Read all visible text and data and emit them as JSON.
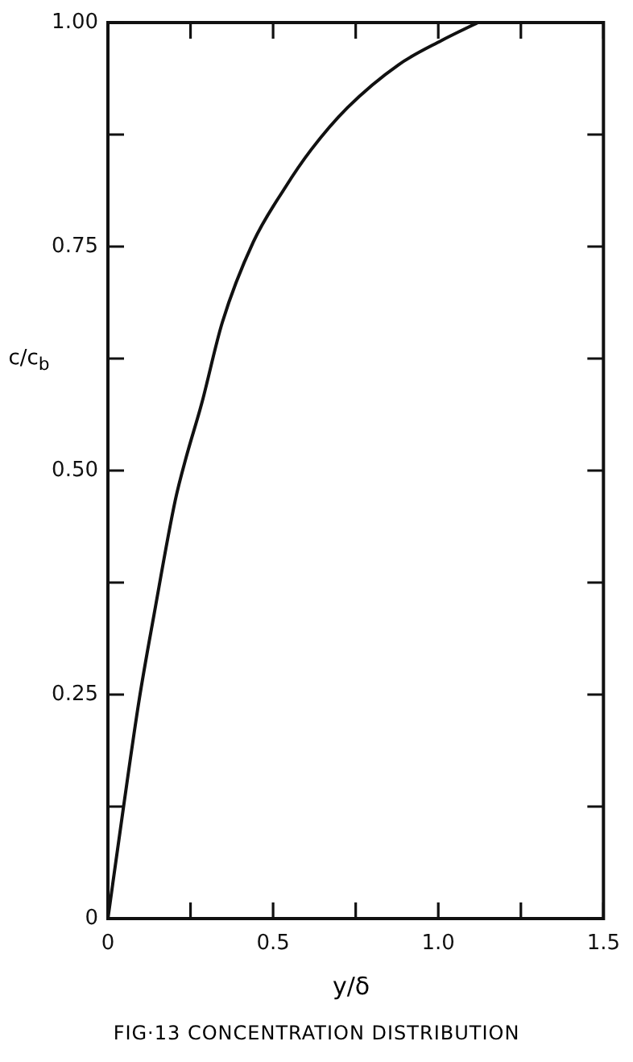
{
  "chart_data": {
    "type": "line",
    "title": "FIG·13 CONCENTRATION DISTRIBUTION",
    "xlabel": "y/δ",
    "ylabel": "c/c$_{b}$",
    "series": [
      {
        "color": "#111111",
        "x": [
          0,
          0.047,
          0.095,
          0.14,
          0.204,
          0.237,
          0.284,
          0.346,
          0.44,
          0.535,
          0.615,
          0.725,
          0.88,
          1.01,
          1.12
        ],
        "values": [
          0,
          0.124,
          0.245,
          0.34,
          0.467,
          0.515,
          0.575,
          0.665,
          0.755,
          0.815,
          0.858,
          0.905,
          0.953,
          0.98,
          1.0
        ]
      }
    ],
    "xlim": [
      0,
      1.5
    ],
    "ylim": [
      0,
      1.0
    ],
    "xticks": [
      0,
      {
        "value": 0.25,
        "label": null
      },
      0.5,
      {
        "value": 0.75,
        "label": null
      },
      {
        "value": 1.0,
        "label": "1.0"
      },
      {
        "value": 1.25,
        "label": null
      },
      1.5
    ],
    "yticks": [
      0,
      {
        "value": 0.125,
        "label": null
      },
      0.25,
      {
        "value": 0.375,
        "label": null
      },
      {
        "value": 0.5,
        "label": "0.50"
      },
      {
        "value": 0.625,
        "label": null
      },
      0.75,
      {
        "value": 0.875,
        "label": null
      },
      {
        "value": 1.0,
        "label": "1.00"
      }
    ],
    "grid": false,
    "legend": false,
    "marker": "none",
    "line_style": "solid"
  }
}
